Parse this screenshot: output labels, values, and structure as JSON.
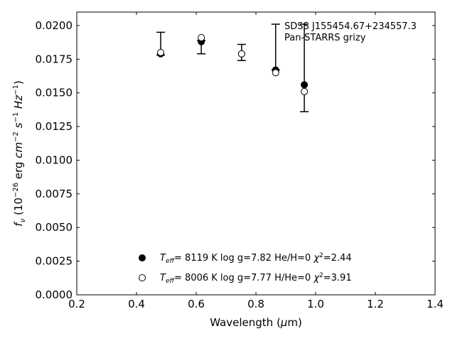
{
  "chart_data": {
    "type": "scatter",
    "xlabel": "Wavelength (μm)",
    "ylabel": "f_ν (10^-26 erg cm^-2 s^-1 Hz^-1)",
    "xlim": [
      0.2,
      1.4
    ],
    "ylim": [
      0.0,
      0.021
    ],
    "x_ticks": [
      "0.2",
      "0.4",
      "0.6",
      "0.8",
      "1.0",
      "1.2",
      "1.4"
    ],
    "y_ticks": [
      "0.0000",
      "0.0025",
      "0.0050",
      "0.0075",
      "0.0100",
      "0.0125",
      "0.0150",
      "0.0175",
      "0.0200"
    ],
    "annotation_lines": [
      "SDSS J155454.67+234557.3",
      "Pan-STARRS grizy"
    ],
    "observed": {
      "x": [
        0.481,
        0.617,
        0.752,
        0.866,
        0.962
      ],
      "y": [
        0.018,
        0.0189,
        0.018,
        0.0168,
        0.0156
      ],
      "err_low": [
        0.0178,
        0.0179,
        0.0174,
        0.0167,
        0.0136
      ],
      "err_high": [
        0.0195,
        0.0189,
        0.0186,
        0.0201,
        0.0201
      ]
    },
    "series": [
      {
        "marker": "filled",
        "label": "T_eff= 8119 K log g=7.82 He/H=0 χ²=2.44",
        "label_parts": {
          "teff_value": "= 8119 K  log g=7.82  He/H=0",
          "chi_value": "=2.44"
        },
        "x": [
          0.481,
          0.617,
          0.752,
          0.866,
          0.962
        ],
        "y": [
          0.0179,
          0.0188,
          0.0179,
          0.0167,
          0.0156
        ]
      },
      {
        "marker": "open",
        "label": "T_eff= 8006 K log g=7.77 H/He=0 χ²=3.91",
        "label_parts": {
          "teff_value": "= 8006 K  log g=7.77  H/He=0",
          "chi_value": "=3.91"
        },
        "x": [
          0.481,
          0.617,
          0.752,
          0.866,
          0.962
        ],
        "y": [
          0.018,
          0.0191,
          0.0179,
          0.0165,
          0.0151
        ]
      }
    ],
    "legend_position": "lower-center",
    "grid": false
  }
}
